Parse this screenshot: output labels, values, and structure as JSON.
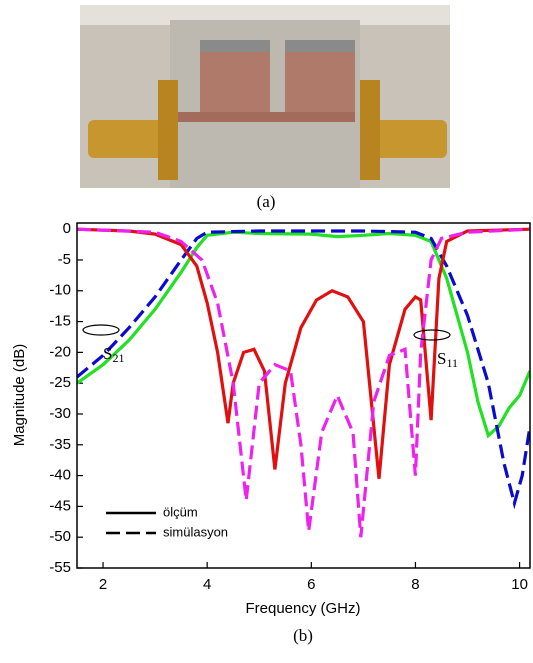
{
  "photo_caption": "(a)",
  "chart_caption": "(b)",
  "chart_data": {
    "type": "line",
    "xlabel": "Frequency (GHz)",
    "ylabel": "Magnitude (dB)",
    "xlim": [
      1.5,
      10.2
    ],
    "ylim": [
      -55,
      1
    ],
    "xticks": [
      2,
      4,
      6,
      8,
      10
    ],
    "yticks": [
      0,
      -5,
      -10,
      -15,
      -20,
      -25,
      -30,
      -35,
      -40,
      -45,
      -50,
      -55
    ],
    "legend": [
      {
        "label": "ölçüm",
        "dash": false
      },
      {
        "label": "simülasyon",
        "dash": true
      }
    ],
    "annotations": [
      {
        "text": "S",
        "sub": "21"
      },
      {
        "text": "S",
        "sub": "11"
      }
    ],
    "series": [
      {
        "color": "#22e022",
        "dash": false,
        "x": [
          1.5,
          2,
          2.5,
          3,
          3.5,
          3.8,
          4,
          4.5,
          5,
          6,
          6.5,
          7,
          7.5,
          8,
          8.3,
          8.6,
          9,
          9.2,
          9.4,
          9.6,
          9.8,
          10,
          10.2
        ],
        "values": [
          -25,
          -22,
          -18,
          -13,
          -7,
          -3,
          -1,
          -0.5,
          -0.7,
          -0.8,
          -1.2,
          -1,
          -0.7,
          -1,
          -2,
          -8,
          -20,
          -28,
          -33.5,
          -32,
          -29,
          -27,
          -23
        ]
      },
      {
        "color": "#0a0ad0",
        "dash": true,
        "x": [
          1.5,
          2,
          2.5,
          3,
          3.5,
          3.8,
          4,
          5,
          6,
          7,
          8,
          8.3,
          8.6,
          9,
          9.4,
          9.7,
          9.9,
          10.05,
          10.2
        ],
        "values": [
          -24,
          -20.5,
          -16,
          -11,
          -5,
          -1.5,
          -0.5,
          -0.3,
          -0.3,
          -0.3,
          -0.5,
          -1.5,
          -6,
          -14,
          -25,
          -38,
          -44.5,
          -40,
          -32
        ]
      },
      {
        "color": "#e01010",
        "dash": false,
        "x": [
          1.5,
          2.5,
          3,
          3.5,
          3.8,
          4,
          4.2,
          4.4,
          4.5,
          4.7,
          4.9,
          5.1,
          5.3,
          5.5,
          5.8,
          6.1,
          6.4,
          6.7,
          7,
          7.3,
          7.5,
          7.8,
          8,
          8.1,
          8.3,
          8.45,
          8.6,
          9,
          10.2
        ],
        "values": [
          0,
          -0.3,
          -0.8,
          -2.5,
          -6,
          -12,
          -20,
          -31.5,
          -25,
          -20,
          -19.5,
          -23,
          -39,
          -25,
          -16,
          -11.5,
          -10,
          -11,
          -15,
          -40.5,
          -22,
          -13,
          -11,
          -11.5,
          -31,
          -8,
          -2,
          -0.3,
          0
        ]
      },
      {
        "color": "#ee22ee",
        "dash": true,
        "x": [
          1.5,
          3,
          3.5,
          3.9,
          4.2,
          4.5,
          4.75,
          5,
          5.3,
          5.6,
          5.8,
          5.95,
          6.2,
          6.5,
          6.8,
          6.95,
          7.2,
          7.5,
          7.8,
          8,
          8.1,
          8.3,
          8.5,
          9,
          10.2
        ],
        "values": [
          0,
          -0.5,
          -2,
          -5,
          -12,
          -25,
          -44,
          -25,
          -22,
          -23,
          -35,
          -49,
          -33,
          -27,
          -33,
          -50,
          -28,
          -20.5,
          -19.5,
          -40,
          -20,
          -5,
          -1.5,
          -0.5,
          0
        ]
      }
    ]
  }
}
